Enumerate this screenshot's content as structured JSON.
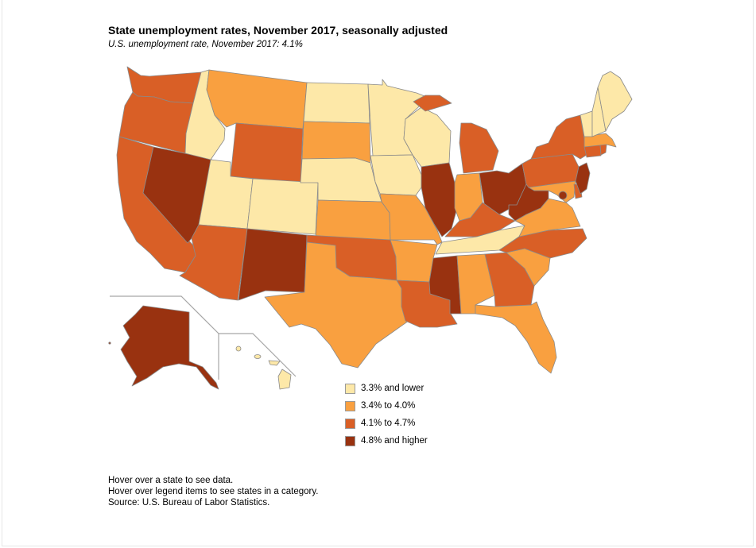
{
  "title": "State unemployment rates, November 2017, seasonally adjusted",
  "subtitle": "U.S. unemployment rate, November 2017: 4.1%",
  "legend": [
    {
      "label": "3.3% and lower",
      "color": "#fde8a8"
    },
    {
      "label": "3.4% to 4.0%",
      "color": "#f9a040"
    },
    {
      "label": "4.1% to 4.7%",
      "color": "#d95f26"
    },
    {
      "label": "4.8% and higher",
      "color": "#993210"
    }
  ],
  "notes": [
    "Hover over a state to see data.",
    "Hover over legend items to see states in a category.",
    "Source: U.S. Bureau of Labor Statistics."
  ],
  "state_categories": {
    "WA": 2,
    "OR": 2,
    "CA": 2,
    "NV": 3,
    "ID": 0,
    "MT": 1,
    "WY": 2,
    "UT": 0,
    "CO": 0,
    "AZ": 2,
    "NM": 3,
    "ND": 0,
    "SD": 1,
    "NE": 0,
    "KS": 1,
    "OK": 2,
    "TX": 1,
    "MN": 0,
    "IA": 0,
    "MO": 1,
    "AR": 1,
    "LA": 2,
    "WI": 0,
    "IL": 3,
    "MS": 3,
    "MI": 2,
    "IN": 1,
    "KY": 2,
    "TN": 0,
    "AL": 1,
    "OH": 3,
    "GA": 2,
    "FL": 1,
    "SC": 1,
    "NC": 2,
    "VA": 1,
    "WV": 3,
    "PA": 2,
    "NY": 2,
    "MD": 1,
    "DE": 2,
    "NJ": 3,
    "DC": 3,
    "CT": 2,
    "RI": 2,
    "MA": 1,
    "VT": 0,
    "NH": 0,
    "ME": 0,
    "AK": 3,
    "HI": 0
  }
}
